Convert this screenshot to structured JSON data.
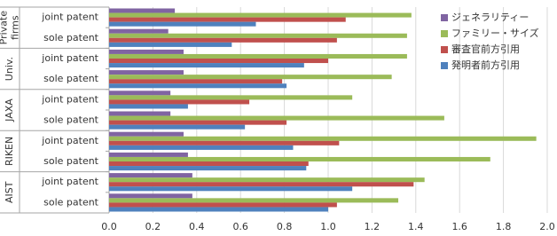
{
  "chart_data": {
    "type": "bar",
    "orientation": "horizontal",
    "categories": [
      "joint patent",
      "sole patent",
      "joint patent",
      "sole patent",
      "joint patent",
      "sole patent",
      "joint patent",
      "sole patent",
      "joint patent",
      "sole patent"
    ],
    "groups": [
      [
        "Private",
        "firms"
      ],
      [
        "Univ."
      ],
      [
        "JAXA"
      ],
      [
        "RIKEN"
      ],
      [
        "AIST"
      ]
    ],
    "series": [
      {
        "name": "ジェネラリティー",
        "color": "#8064a2",
        "values": [
          0.3,
          0.27,
          0.34,
          0.34,
          0.28,
          0.28,
          0.34,
          0.36,
          0.38,
          0.38
        ]
      },
      {
        "name": "ファミリー・サイズ",
        "color": "#9bbb59",
        "values": [
          1.38,
          1.36,
          1.36,
          1.29,
          1.11,
          1.53,
          1.95,
          1.74,
          1.44,
          1.32
        ]
      },
      {
        "name": "審査官前方引用",
        "color": "#c0504d",
        "values": [
          1.08,
          1.04,
          1.0,
          0.79,
          0.64,
          0.81,
          1.05,
          0.91,
          1.39,
          1.04
        ]
      },
      {
        "name": "発明者前方引用",
        "color": "#4f81bd",
        "values": [
          0.67,
          0.56,
          0.89,
          0.81,
          0.36,
          0.62,
          0.84,
          0.9,
          1.11,
          1.0
        ]
      }
    ],
    "xlim": [
      0,
      2.0
    ],
    "xticks": [
      {
        "value": 0,
        "label": "0.0"
      },
      {
        "value": 0.2,
        "label": "0.2"
      },
      {
        "value": 0.4,
        "label": "0.4"
      },
      {
        "value": 0.6,
        "label": "0.6"
      },
      {
        "value": 0.8,
        "label": "0.8"
      },
      {
        "value": 1.0,
        "label": "1.0"
      },
      {
        "value": 1.2,
        "label": "1.2"
      },
      {
        "value": 1.4,
        "label": "1.4"
      },
      {
        "value": 1.6,
        "label": "1.6"
      },
      {
        "value": 1.8,
        "label": "1.8"
      },
      {
        "value": 2.0,
        "label": "2.0"
      }
    ],
    "grid": true,
    "legend": "right"
  }
}
